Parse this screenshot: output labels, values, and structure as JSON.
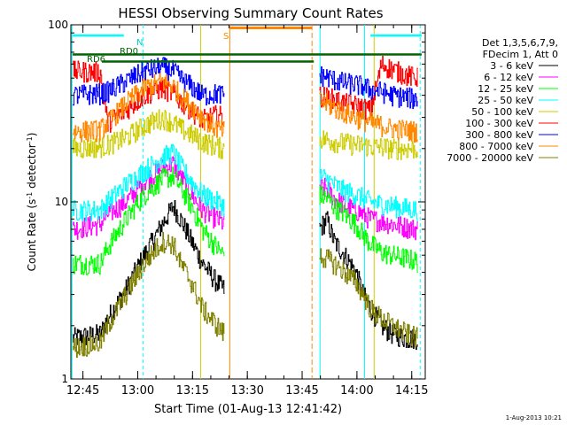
{
  "chart_data": {
    "type": "line",
    "title": "HESSI Observing Summary Count Rates",
    "xlabel": "Start Time (01-Aug-13 12:41:42)",
    "ylabel_main": "Count Rate (s",
    "ylabel_sup1": "-1",
    "ylabel_mid": " detector",
    "ylabel_sup2": "-1",
    "ylabel_end": ")",
    "y_scale": "log",
    "ylim": [
      1,
      100
    ],
    "xlim_minutes": [
      0,
      97
    ],
    "x_ticks": [
      {
        "label": "12:45",
        "min": 3.3
      },
      {
        "label": "13:00",
        "min": 18.3
      },
      {
        "label": "13:15",
        "min": 33.3
      },
      {
        "label": "13:30",
        "min": 48.3
      },
      {
        "label": "13:45",
        "min": 63.3
      },
      {
        "label": "14:00",
        "min": 78.3
      },
      {
        "label": "14:15",
        "min": 93.3
      }
    ],
    "y_tick_labels": [
      "1",
      "10",
      "100"
    ],
    "legend": {
      "placement": "right",
      "header": [
        "Det 1,3,5,6,7,9,",
        "FDecim 1, Att 0"
      ]
    },
    "series": [
      {
        "name": "3 - 6 keV",
        "color": "#000000",
        "left_x": [
          0,
          8,
          10,
          15,
          20,
          25,
          28,
          30,
          33,
          36,
          40,
          42
        ],
        "left_y": [
          1.7,
          1.8,
          2.2,
          3.2,
          5,
          7.5,
          9.5,
          8,
          6,
          4.5,
          3.5,
          3.2
        ],
        "right_x": [
          68,
          70,
          72,
          75,
          78,
          80,
          82,
          85,
          88,
          92,
          95
        ],
        "right_y": [
          7,
          8,
          6,
          5,
          4,
          3,
          2.5,
          2,
          1.8,
          1.7,
          1.7
        ]
      },
      {
        "name": "6 - 12 keV",
        "color": "#ff00ff",
        "left_x": [
          0,
          8,
          10,
          15,
          20,
          25,
          28,
          30,
          33,
          36,
          40,
          42
        ],
        "left_y": [
          7,
          7.5,
          8.5,
          10,
          13,
          15.5,
          16.5,
          14,
          11,
          9,
          8,
          7.5
        ],
        "right_x": [
          68,
          70,
          72,
          75,
          78,
          80,
          82,
          85,
          88,
          92,
          95
        ],
        "right_y": [
          12,
          12,
          10.5,
          9.5,
          9,
          8.5,
          8,
          7.8,
          7.5,
          7.2,
          7
        ]
      },
      {
        "name": "12 - 25 keV",
        "color": "#00ff00",
        "left_x": [
          0,
          8,
          10,
          15,
          20,
          25,
          28,
          30,
          33,
          36,
          40,
          42
        ],
        "left_y": [
          4.5,
          4.5,
          5.5,
          8,
          11,
          13.5,
          14,
          12,
          9.5,
          7,
          5.5,
          5
        ],
        "right_x": [
          68,
          70,
          72,
          75,
          78,
          80,
          82,
          85,
          88,
          92,
          95
        ],
        "right_y": [
          11,
          10.5,
          9.5,
          8.5,
          7.5,
          6.5,
          5.8,
          5.2,
          5,
          4.8,
          4.6
        ]
      },
      {
        "name": "25 - 50 keV",
        "color": "#00ffff",
        "left_x": [
          0,
          8,
          10,
          15,
          20,
          25,
          28,
          30,
          33,
          36,
          40,
          42
        ],
        "left_y": [
          9,
          9,
          10,
          12.5,
          15,
          18,
          19,
          16,
          13,
          11,
          10,
          9.5
        ],
        "right_x": [
          68,
          70,
          72,
          75,
          78,
          80,
          82,
          85,
          88,
          92,
          95
        ],
        "right_y": [
          14,
          13.5,
          12.5,
          11.5,
          11,
          10.5,
          10,
          9.7,
          9.5,
          9.2,
          9
        ]
      },
      {
        "name": "50 - 100 keV",
        "color": "#cccc00",
        "left_x": [
          0,
          8,
          10,
          15,
          20,
          25,
          28,
          30,
          33,
          36,
          40,
          42
        ],
        "left_y": [
          20,
          20.5,
          21,
          23,
          27,
          30,
          28,
          26,
          24,
          22,
          20.5,
          20
        ],
        "right_x": [
          68,
          70,
          72,
          75,
          78,
          80,
          82,
          85,
          88,
          92,
          95
        ],
        "right_y": [
          23,
          22.5,
          22,
          21.5,
          21,
          21,
          20.5,
          20.5,
          20,
          20,
          20
        ]
      },
      {
        "name": "100 - 300 keV",
        "color": "#ff0000",
        "left_x": [
          0,
          8,
          10,
          15,
          20,
          25,
          28,
          30,
          33,
          36,
          40,
          42
        ],
        "left_y": [
          55,
          54,
          28,
          33,
          40,
          44,
          41,
          37,
          33,
          29,
          31,
          30
        ],
        "right_x": [
          68,
          70,
          72,
          75,
          78,
          80,
          82,
          85,
          88,
          92,
          95
        ],
        "right_y": [
          40,
          39,
          38,
          36,
          35,
          34,
          33,
          60,
          56,
          52,
          50
        ]
      },
      {
        "name": "300 - 800 keV",
        "color": "#0000ff",
        "left_x": [
          0,
          8,
          10,
          15,
          20,
          25,
          28,
          30,
          33,
          36,
          40,
          42
        ],
        "left_y": [
          40,
          41,
          42,
          48,
          55,
          58,
          55,
          50,
          45,
          40,
          41,
          40
        ],
        "right_x": [
          68,
          70,
          72,
          75,
          78,
          80,
          82,
          85,
          88,
          92,
          95
        ],
        "right_y": [
          52,
          51,
          49,
          47,
          46,
          45,
          43,
          42,
          40,
          39,
          38
        ]
      },
      {
        "name": "800 - 7000 keV",
        "color": "#ff8800",
        "left_x": [
          0,
          8,
          10,
          15,
          20,
          25,
          28,
          30,
          33,
          36,
          40,
          42
        ],
        "left_y": [
          25,
          25.5,
          28,
          36,
          44,
          48,
          45,
          40,
          35,
          30,
          26,
          25
        ],
        "right_x": [
          68,
          70,
          72,
          75,
          78,
          80,
          82,
          85,
          88,
          92,
          95
        ],
        "right_y": [
          37,
          36,
          34,
          32,
          30,
          29,
          28,
          27,
          26,
          25.5,
          25
        ]
      },
      {
        "name": "7000 - 20000 keV",
        "color": "#808000",
        "left_x": [
          0,
          8,
          10,
          15,
          20,
          25,
          28,
          30,
          33,
          36,
          40,
          42
        ],
        "left_y": [
          1.5,
          1.6,
          2,
          3,
          4.5,
          6,
          5.8,
          4.5,
          3.5,
          2.5,
          2,
          1.8
        ],
        "right_x": [
          68,
          70,
          72,
          75,
          78,
          80,
          82,
          85,
          88,
          92,
          95
        ],
        "right_y": [
          5,
          4.8,
          4.5,
          4,
          3.5,
          3,
          2.5,
          2.2,
          2,
          1.8,
          1.7
        ]
      }
    ],
    "annotations": {
      "rd6": "RD6",
      "rd0": "RD0",
      "n": "N",
      "s": "S",
      "timestamp": "1-Aug-2013 10:21"
    }
  }
}
